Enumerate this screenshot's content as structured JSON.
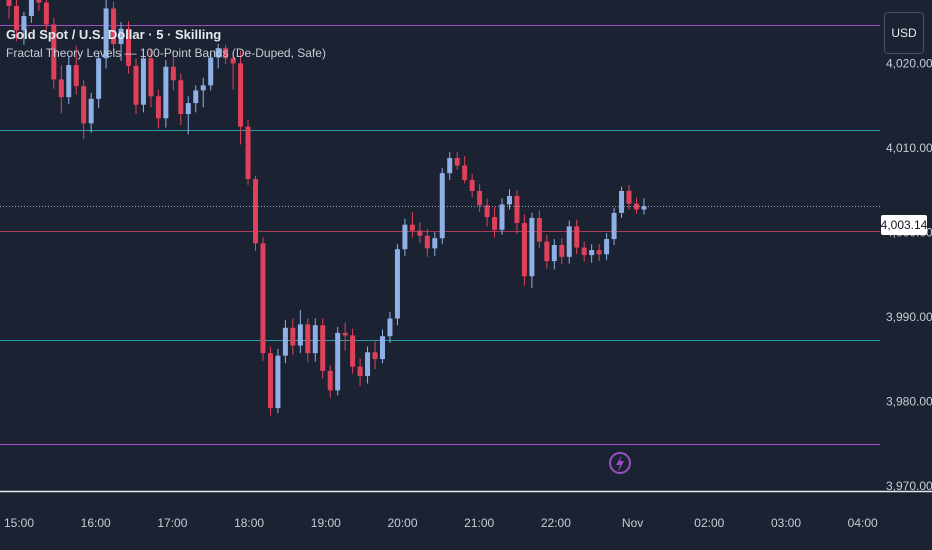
{
  "header": {
    "title": "Gold Spot / U.S. Dollar · 5 · Skilling",
    "indicator": "Fractal Theory Levels — 100-Point Bands (De-Duped, Safe)",
    "currency": "USD"
  },
  "current_price_label": "4,003.14",
  "colors": {
    "background": "#1b2231",
    "up": "#8fb0e6",
    "down": "#e0415a",
    "level_cyan": "#2a9ba6",
    "level_purple": "#9a4fc4",
    "level_red": "#b03a55",
    "axis_text": "#c8ccd6"
  },
  "icons": {
    "event_marker": "lightning-bolt-icon"
  },
  "chart_data": {
    "type": "candlestick",
    "title": "Gold Spot / U.S. Dollar · 5 · Skilling",
    "ylim": [
      3969.5,
      4027.5
    ],
    "y_ticks": [
      {
        "value": 4020,
        "label": "4,020.00"
      },
      {
        "value": 4010,
        "label": "4,010.00"
      },
      {
        "value": 4000,
        "label": "4,000.00"
      },
      {
        "value": 3990,
        "label": "3,990.00"
      },
      {
        "value": 3980,
        "label": "3,980.00"
      },
      {
        "value": 3970,
        "label": "3,970.00"
      }
    ],
    "x_ticks": [
      "15:00",
      "16:00",
      "17:00",
      "18:00",
      "19:00",
      "20:00",
      "21:00",
      "22:00",
      "Nov",
      "02:00",
      "03:00",
      "04:00"
    ],
    "levels": [
      {
        "price": 4024.6,
        "color": "#9a4fc4"
      },
      {
        "price": 4012.1,
        "color": "#2a9ba6"
      },
      {
        "price": 4000.1,
        "color": "#b03a55"
      },
      {
        "price": 3987.3,
        "color": "#2a9ba6"
      },
      {
        "price": 3974.9,
        "color": "#9a4fc4"
      }
    ],
    "current_price": 4003.14,
    "candles": [
      [
        4028.1,
        4029.5,
        4025.3,
        4026.8
      ],
      [
        4026.8,
        4027.5,
        4022.6,
        4023.9
      ],
      [
        4023.9,
        4026.1,
        4022.2,
        4025.6
      ],
      [
        4025.6,
        4029.6,
        4024.8,
        4028.8
      ],
      [
        4028.8,
        4030.1,
        4026.2,
        4027.2
      ],
      [
        4027.2,
        4028.4,
        4023.9,
        4024.6
      ],
      [
        4024.6,
        4025.4,
        4017.0,
        4018.1
      ],
      [
        4018.1,
        4019.8,
        4014.1,
        4016.0
      ],
      [
        4016.0,
        4020.8,
        4015.2,
        4019.8
      ],
      [
        4019.8,
        4022.1,
        4016.3,
        4017.3
      ],
      [
        4017.3,
        4018.0,
        4011.0,
        4012.9
      ],
      [
        4012.9,
        4016.5,
        4011.8,
        4015.8
      ],
      [
        4015.8,
        4021.3,
        4014.7,
        4020.6
      ],
      [
        4020.6,
        4028.0,
        4019.4,
        4026.5
      ],
      [
        4026.5,
        4027.3,
        4021.2,
        4022.3
      ],
      [
        4022.3,
        4024.9,
        4020.3,
        4024.1
      ],
      [
        4024.1,
        4025.0,
        4018.8,
        4019.7
      ],
      [
        4019.7,
        4020.6,
        4014.0,
        4015.1
      ],
      [
        4015.1,
        4021.7,
        4014.2,
        4020.6
      ],
      [
        4020.6,
        4021.7,
        4014.8,
        4016.1
      ],
      [
        4016.1,
        4016.9,
        4012.3,
        4013.5
      ],
      [
        4013.5,
        4020.4,
        4012.4,
        4019.6
      ],
      [
        4019.6,
        4021.6,
        4016.8,
        4018.0
      ],
      [
        4018.0,
        4018.8,
        4012.7,
        4014.0
      ],
      [
        4014.0,
        4016.1,
        4011.6,
        4015.3
      ],
      [
        4015.3,
        4017.4,
        4014.2,
        4016.8
      ],
      [
        4016.8,
        4018.3,
        4014.8,
        4017.4
      ],
      [
        4017.4,
        4021.1,
        4016.8,
        4020.7
      ],
      [
        4020.7,
        4022.3,
        4019.4,
        4021.8
      ],
      [
        4021.8,
        4022.2,
        4019.9,
        4020.6
      ],
      [
        4020.6,
        4021.3,
        4016.9,
        4020.0
      ],
      [
        4020.0,
        4021.5,
        4010.4,
        4012.5
      ],
      [
        4012.5,
        4013.3,
        4005.6,
        4006.3
      ],
      [
        4006.3,
        4006.7,
        3997.8,
        3998.7
      ],
      [
        3998.7,
        3999.4,
        3984.8,
        3985.7
      ],
      [
        3985.7,
        3986.5,
        3978.3,
        3979.2
      ],
      [
        3979.2,
        3986.2,
        3978.6,
        3985.4
      ],
      [
        3985.4,
        3989.6,
        3984.5,
        3988.7
      ],
      [
        3988.7,
        3989.8,
        3985.5,
        3986.6
      ],
      [
        3986.6,
        3990.8,
        3985.7,
        3989.1
      ],
      [
        3989.1,
        3989.8,
        3984.6,
        3985.7
      ],
      [
        3985.7,
        3989.8,
        3984.7,
        3989.0
      ],
      [
        3989.0,
        3989.8,
        3982.7,
        3983.6
      ],
      [
        3983.6,
        3984.3,
        3980.4,
        3981.3
      ],
      [
        3981.3,
        3988.8,
        3980.7,
        3988.1
      ],
      [
        3988.1,
        3989.3,
        3986.0,
        3987.8
      ],
      [
        3987.8,
        3988.6,
        3983.3,
        3984.1
      ],
      [
        3984.1,
        3985.1,
        3981.8,
        3983.0
      ],
      [
        3983.0,
        3986.5,
        3982.1,
        3985.8
      ],
      [
        3985.8,
        3987.1,
        3983.8,
        3985.0
      ],
      [
        3985.0,
        3988.5,
        3984.5,
        3987.7
      ],
      [
        3987.7,
        3990.6,
        3986.9,
        3989.8
      ],
      [
        3989.8,
        3998.6,
        3989.0,
        3998.0
      ],
      [
        3998.0,
        4001.6,
        3997.2,
        4000.9
      ],
      [
        4000.9,
        4002.4,
        3999.4,
        4000.2
      ],
      [
        4000.2,
        4001.2,
        3998.7,
        3999.6
      ],
      [
        3999.6,
        4000.4,
        3997.1,
        3998.1
      ],
      [
        3998.1,
        4000.0,
        3997.2,
        3999.3
      ],
      [
        3999.3,
        4007.6,
        3998.6,
        4007.0
      ],
      [
        4007.0,
        4009.5,
        4006.2,
        4008.8
      ],
      [
        4008.8,
        4009.5,
        4007.4,
        4007.9
      ],
      [
        4007.9,
        4009.0,
        4005.8,
        4006.2
      ],
      [
        4006.2,
        4006.9,
        4004.1,
        4004.9
      ],
      [
        4004.9,
        4005.7,
        4002.4,
        4003.2
      ],
      [
        4003.2,
        4004.0,
        4000.7,
        4001.8
      ],
      [
        4001.8,
        4003.0,
        3999.4,
        4000.3
      ],
      [
        4000.3,
        4004.0,
        3999.7,
        4003.3
      ],
      [
        4003.3,
        4005.1,
        4002.7,
        4004.3
      ],
      [
        4004.3,
        4005.0,
        3999.8,
        4001.1
      ],
      [
        4001.1,
        4002.1,
        3993.7,
        3994.8
      ],
      [
        3994.8,
        4002.3,
        3993.4,
        4001.7
      ],
      [
        4001.7,
        4002.6,
        3998.1,
        3998.9
      ],
      [
        3998.9,
        3999.7,
        3995.7,
        3996.6
      ],
      [
        3996.6,
        3999.2,
        3995.6,
        3998.5
      ],
      [
        3998.5,
        3999.3,
        3996.2,
        3997.1
      ],
      [
        3997.1,
        4001.4,
        3996.3,
        4000.7
      ],
      [
        4000.7,
        4001.5,
        3997.4,
        3998.2
      ],
      [
        3998.2,
        3998.9,
        3996.5,
        3997.3
      ],
      [
        3997.3,
        3998.6,
        3996.4,
        3997.9
      ],
      [
        3997.9,
        3998.6,
        3996.6,
        3997.4
      ],
      [
        3997.4,
        3999.9,
        3996.7,
        3999.2
      ],
      [
        3999.2,
        4002.9,
        3998.5,
        4002.3
      ],
      [
        4002.3,
        4005.4,
        4001.7,
        4004.9
      ],
      [
        4004.9,
        4005.6,
        4002.7,
        4003.4
      ],
      [
        4003.4,
        4004.1,
        4002.2,
        4002.7
      ],
      [
        4002.7,
        4004.0,
        4002.1,
        4003.1
      ]
    ]
  }
}
